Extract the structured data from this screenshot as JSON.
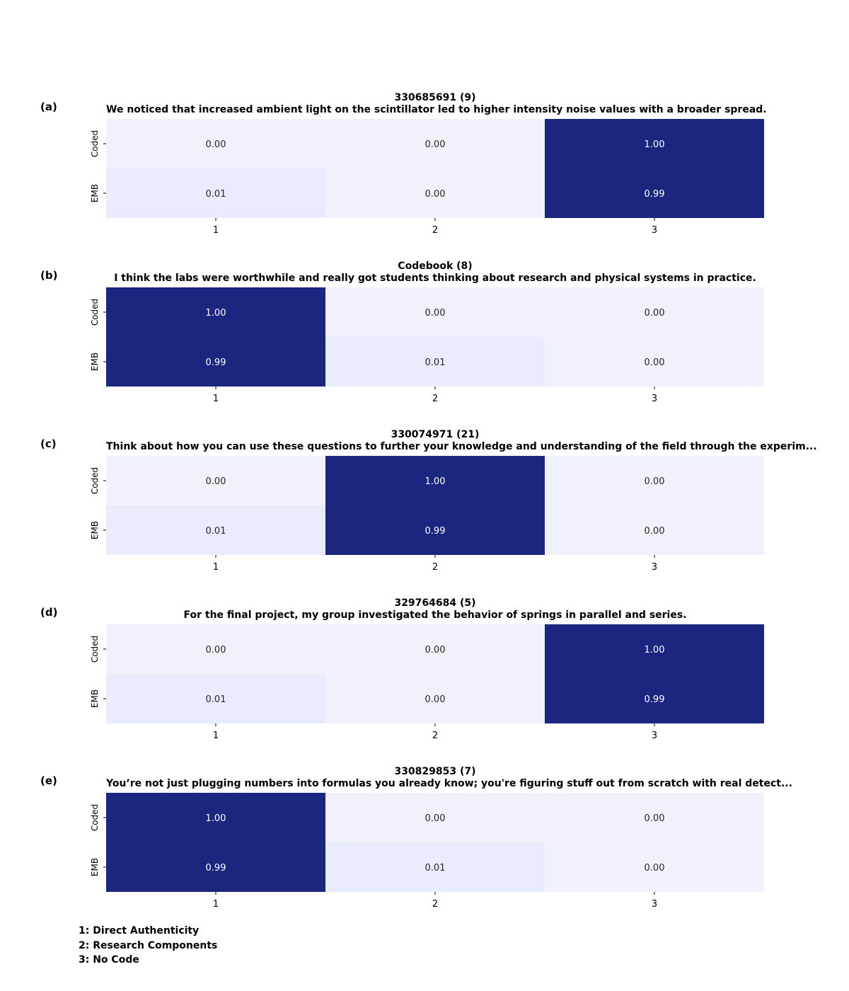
{
  "chart_data": [
    {
      "type": "heatmap",
      "panel": "(a)",
      "title": "330685691 (9)",
      "subtitle": "We noticed that increased ambient light on the scintillator led to higher intensity noise values with a broader spread.",
      "x_tick_labels": [
        "1",
        "2",
        "3"
      ],
      "y_tick_labels": [
        "Coded",
        "EMB"
      ],
      "values": [
        [
          0.0,
          0.0,
          1.0
        ],
        [
          0.01,
          0.0,
          0.99
        ]
      ],
      "value_labels": [
        [
          "0.00",
          "0.00",
          "1.00"
        ],
        [
          "0.01",
          "0.00",
          "0.99"
        ]
      ]
    },
    {
      "type": "heatmap",
      "panel": "(b)",
      "title": "Codebook (8)",
      "subtitle": "I think the labs were worthwhile and really got students thinking about research and physical systems in practice.",
      "x_tick_labels": [
        "1",
        "2",
        "3"
      ],
      "y_tick_labels": [
        "Coded",
        "EMB"
      ],
      "values": [
        [
          1.0,
          0.0,
          0.0
        ],
        [
          0.99,
          0.01,
          0.0
        ]
      ],
      "value_labels": [
        [
          "1.00",
          "0.00",
          "0.00"
        ],
        [
          "0.99",
          "0.01",
          "0.00"
        ]
      ]
    },
    {
      "type": "heatmap",
      "panel": "(c)",
      "title": "330074971 (21)",
      "subtitle": "Think about how you can use these questions to further your knowledge and understanding of the field through the experim...",
      "x_tick_labels": [
        "1",
        "2",
        "3"
      ],
      "y_tick_labels": [
        "Coded",
        "EMB"
      ],
      "values": [
        [
          0.0,
          1.0,
          0.0
        ],
        [
          0.01,
          0.99,
          0.0
        ]
      ],
      "value_labels": [
        [
          "0.00",
          "1.00",
          "0.00"
        ],
        [
          "0.01",
          "0.99",
          "0.00"
        ]
      ]
    },
    {
      "type": "heatmap",
      "panel": "(d)",
      "title": "329764684 (5)",
      "subtitle": "For the final project, my group investigated the behavior of springs in parallel and series.",
      "x_tick_labels": [
        "1",
        "2",
        "3"
      ],
      "y_tick_labels": [
        "Coded",
        "EMB"
      ],
      "values": [
        [
          0.0,
          0.0,
          1.0
        ],
        [
          0.01,
          0.0,
          0.99
        ]
      ],
      "value_labels": [
        [
          "0.00",
          "0.00",
          "1.00"
        ],
        [
          "0.01",
          "0.00",
          "0.99"
        ]
      ]
    },
    {
      "type": "heatmap",
      "panel": "(e)",
      "title": "330829853 (7)",
      "subtitle": "You’re not just plugging numbers into formulas you already know; you're figuring stuff out from scratch with real detect...",
      "x_tick_labels": [
        "1",
        "2",
        "3"
      ],
      "y_tick_labels": [
        "Coded",
        "EMB"
      ],
      "values": [
        [
          1.0,
          0.0,
          0.0
        ],
        [
          0.99,
          0.01,
          0.0
        ]
      ],
      "value_labels": [
        [
          "1.00",
          "0.00",
          "0.00"
        ],
        [
          "0.99",
          "0.01",
          "0.00"
        ]
      ]
    }
  ],
  "legend": [
    "1: Direct Authenticity",
    "2: Research Components",
    "3: No Code"
  ],
  "colors": {
    "high": "#1c267e",
    "low": "#f1f1fb",
    "mid_low": "#e9ecfc",
    "text_dark": "#262626",
    "text_light": "#ffffff"
  }
}
